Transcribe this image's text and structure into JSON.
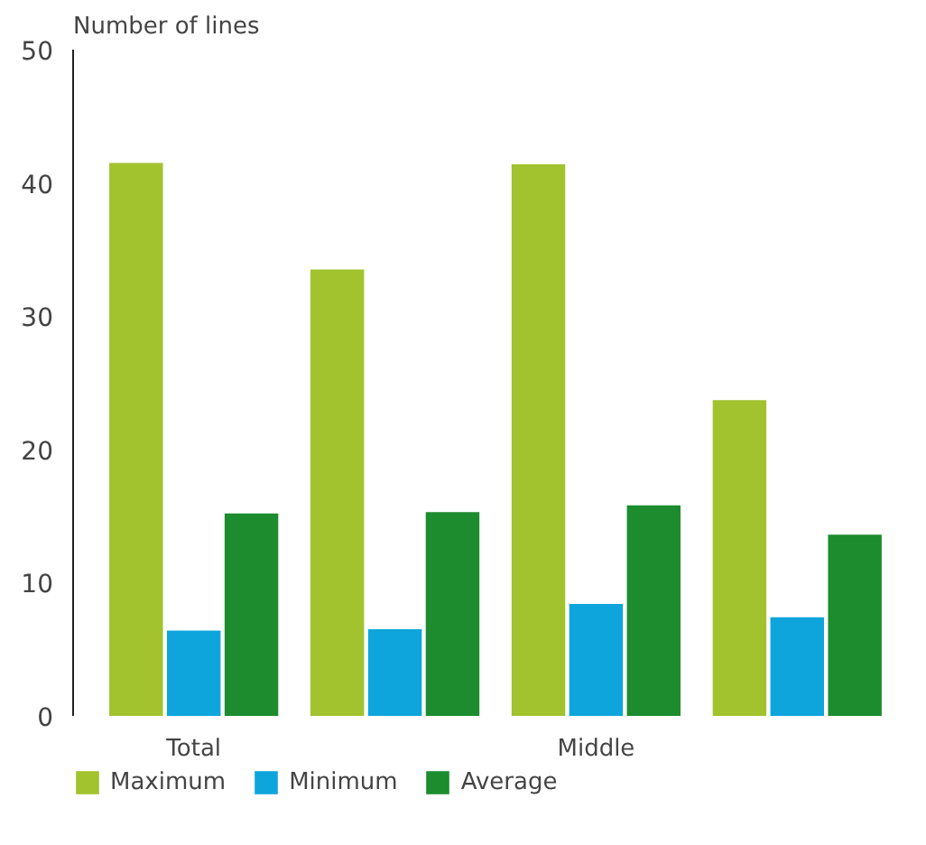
{
  "chart_data": {
    "type": "bar",
    "ylabel": "Number of lines",
    "categories": [
      "Total",
      null,
      "Middle",
      null
    ],
    "series": [
      {
        "name": "Maximum",
        "color": "#a2c22e",
        "values": [
          41.5,
          33.5,
          41.4,
          23.7
        ]
      },
      {
        "name": "Minimum",
        "color": "#0ea5dc",
        "values": [
          6.4,
          6.5,
          8.4,
          7.4
        ]
      },
      {
        "name": "Average",
        "color": "#1c8c2f",
        "values": [
          15.2,
          15.3,
          15.8,
          13.6
        ]
      }
    ],
    "ylim": [
      0,
      50
    ],
    "yticks": [
      0,
      10,
      20,
      30,
      40,
      50
    ],
    "grid": false,
    "legend": "bottom"
  }
}
